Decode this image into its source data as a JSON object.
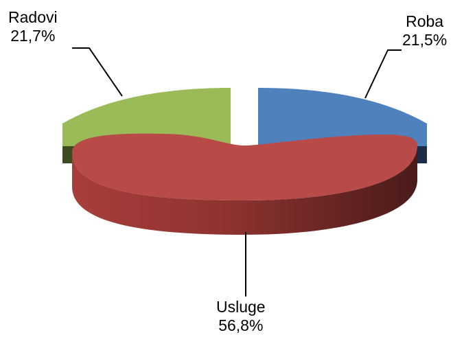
{
  "chart_data": {
    "type": "pie",
    "style": "3d-exploded",
    "slices": [
      {
        "name": "Roba",
        "value": 21.5,
        "display": "21,5%",
        "color": "#4F81BD",
        "side_color": "#243A5C"
      },
      {
        "name": "Usluge",
        "value": 56.8,
        "display": "56,8%",
        "color": "#C0504D",
        "side_color": "#5E2220"
      },
      {
        "name": "Radovi",
        "value": 21.7,
        "display": "21,7%",
        "color": "#9BBB59",
        "side_color": "#4A5A28"
      }
    ],
    "legend": "none",
    "labels_position": "outside-with-leader-lines"
  }
}
